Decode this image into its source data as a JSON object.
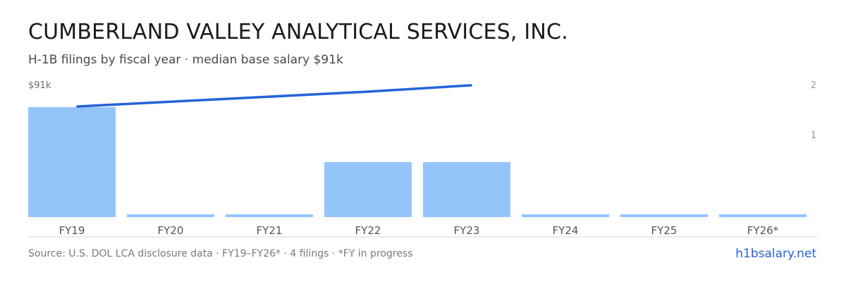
{
  "header": {
    "title": "CUMBERLAND VALLEY ANALYTICAL SERVICES, INC.",
    "subtitle": "H-1B filings by fiscal year · median base salary $91k"
  },
  "footer": {
    "source": "Source: U.S. DOL LCA disclosure data · FY19–FY26* · 4 filings · *FY in progress",
    "site": "h1bsalary.net"
  },
  "colors": {
    "bar": "#93c5fb",
    "line": "#2563d9",
    "axis_text": "#6b6b6b",
    "baseline": "#d9d9d9"
  },
  "chart_data": {
    "type": "bar",
    "categories": [
      "FY19",
      "FY20",
      "FY21",
      "FY22",
      "FY23",
      "FY24",
      "FY25",
      "FY26*"
    ],
    "series": [
      {
        "values": [
          2,
          0,
          0,
          1,
          1,
          0,
          0,
          0
        ]
      }
    ],
    "line_series": {
      "label": "$91k",
      "x": [
        "FY19",
        "FY22",
        "FY23"
      ],
      "values": [
        91,
        91,
        91
      ]
    },
    "y_right_ticks": [
      "2",
      "1"
    ],
    "ylim": [
      0,
      2
    ],
    "left_axis_label": "$91k",
    "grid": false,
    "legend": "none"
  }
}
